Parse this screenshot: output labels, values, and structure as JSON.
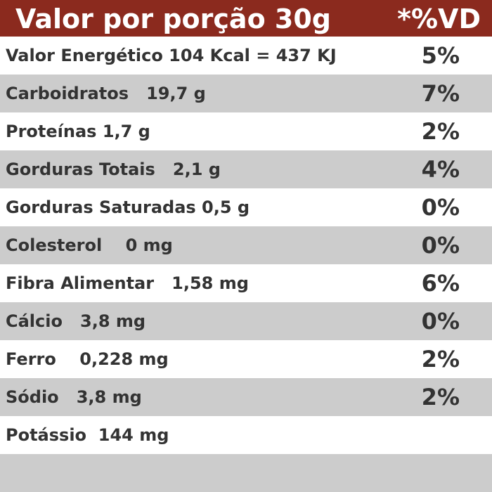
{
  "header": {
    "title": "Valor por porção 30g",
    "vd_label": "*%VD"
  },
  "rows": [
    {
      "label": "Valor Energético 104 Kcal = 437 KJ",
      "percent": "5%"
    },
    {
      "label": "Carboidratos   19,7 g",
      "percent": "7%"
    },
    {
      "label": "Proteínas 1,7 g",
      "percent": "2%"
    },
    {
      "label": "Gorduras Totais   2,1 g",
      "percent": "4%"
    },
    {
      "label": "Gorduras Saturadas 0,5 g",
      "percent": "0%"
    },
    {
      "label": "Colesterol    0 mg",
      "percent": "0%"
    },
    {
      "label": "Fibra Alimentar   1,58 mg",
      "percent": "6%"
    },
    {
      "label": "Cálcio   3,8 mg",
      "percent": "0%"
    },
    {
      "label": "Ferro    0,228 mg",
      "percent": "2%"
    },
    {
      "label": "Sódio   3,8 mg",
      "percent": "2%"
    },
    {
      "label": "Potássio  144 mg",
      "percent": ""
    }
  ],
  "colors": {
    "header_bg": "#8b2a1e",
    "row_white": "#ffffff",
    "row_gray": "#cccccc",
    "text": "#333333"
  }
}
